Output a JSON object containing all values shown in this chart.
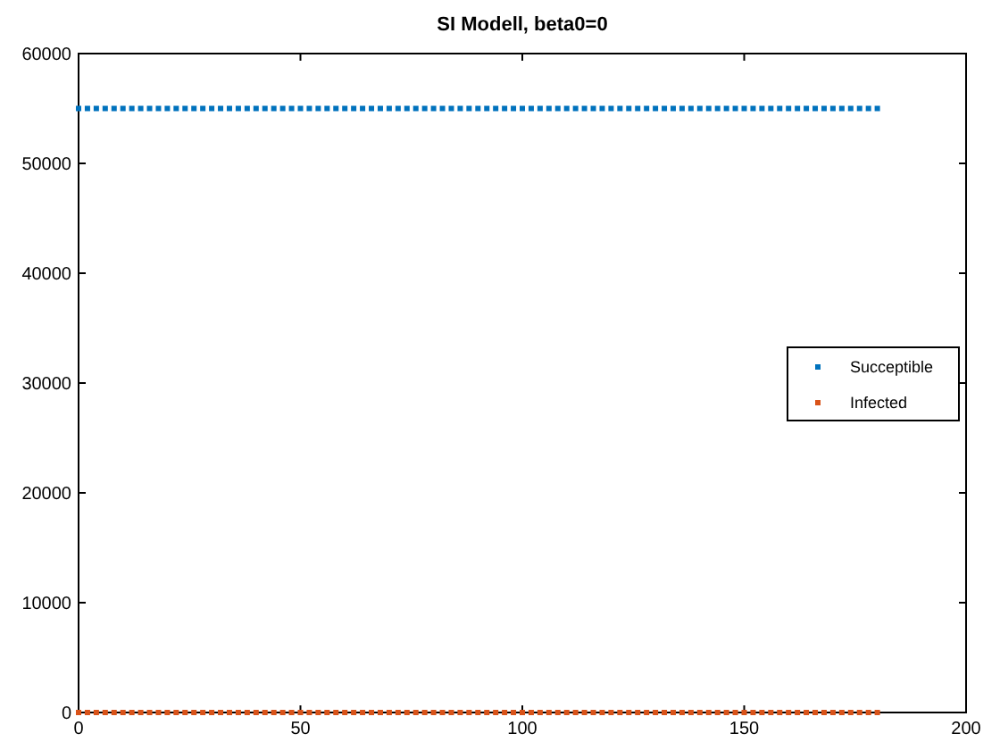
{
  "chart_data": {
    "type": "scatter",
    "title": "SI Modell, beta0=0",
    "x": [
      0,
      2,
      4,
      6,
      8,
      10,
      12,
      14,
      16,
      18,
      20,
      22,
      24,
      26,
      28,
      30,
      32,
      34,
      36,
      38,
      40,
      42,
      44,
      46,
      48,
      50,
      52,
      54,
      56,
      58,
      60,
      62,
      64,
      66,
      68,
      70,
      72,
      74,
      76,
      78,
      80,
      82,
      84,
      86,
      88,
      90,
      92,
      94,
      96,
      98,
      100,
      102,
      104,
      106,
      108,
      110,
      112,
      114,
      116,
      118,
      120,
      122,
      124,
      126,
      128,
      130,
      132,
      134,
      136,
      138,
      140,
      142,
      144,
      146,
      148,
      150,
      152,
      154,
      156,
      158,
      160,
      162,
      164,
      166,
      168,
      170,
      172,
      174,
      176,
      178,
      180
    ],
    "series": [
      {
        "name": "Succeptible",
        "color": "#0072bd",
        "values": [
          55000,
          55000,
          55000,
          55000,
          55000,
          55000,
          55000,
          55000,
          55000,
          55000,
          55000,
          55000,
          55000,
          55000,
          55000,
          55000,
          55000,
          55000,
          55000,
          55000,
          55000,
          55000,
          55000,
          55000,
          55000,
          55000,
          55000,
          55000,
          55000,
          55000,
          55000,
          55000,
          55000,
          55000,
          55000,
          55000,
          55000,
          55000,
          55000,
          55000,
          55000,
          55000,
          55000,
          55000,
          55000,
          55000,
          55000,
          55000,
          55000,
          55000,
          55000,
          55000,
          55000,
          55000,
          55000,
          55000,
          55000,
          55000,
          55000,
          55000,
          55000,
          55000,
          55000,
          55000,
          55000,
          55000,
          55000,
          55000,
          55000,
          55000,
          55000,
          55000,
          55000,
          55000,
          55000,
          55000,
          55000,
          55000,
          55000,
          55000,
          55000,
          55000,
          55000,
          55000,
          55000,
          55000,
          55000,
          55000,
          55000,
          55000,
          55000
        ]
      },
      {
        "name": "Infected",
        "color": "#d95319",
        "values": [
          0,
          0,
          0,
          0,
          0,
          0,
          0,
          0,
          0,
          0,
          0,
          0,
          0,
          0,
          0,
          0,
          0,
          0,
          0,
          0,
          0,
          0,
          0,
          0,
          0,
          0,
          0,
          0,
          0,
          0,
          0,
          0,
          0,
          0,
          0,
          0,
          0,
          0,
          0,
          0,
          0,
          0,
          0,
          0,
          0,
          0,
          0,
          0,
          0,
          0,
          0,
          0,
          0,
          0,
          0,
          0,
          0,
          0,
          0,
          0,
          0,
          0,
          0,
          0,
          0,
          0,
          0,
          0,
          0,
          0,
          0,
          0,
          0,
          0,
          0,
          0,
          0,
          0,
          0,
          0,
          0,
          0,
          0,
          0,
          0,
          0,
          0,
          0,
          0,
          0,
          0
        ]
      }
    ],
    "xlim": [
      0,
      200
    ],
    "xticks": [
      0,
      50,
      100,
      150,
      200
    ],
    "ylim": [
      0,
      60000
    ],
    "yticks": [
      0,
      10000,
      20000,
      30000,
      40000,
      50000,
      60000
    ],
    "grid": false,
    "legend": "right",
    "marker": "square"
  }
}
